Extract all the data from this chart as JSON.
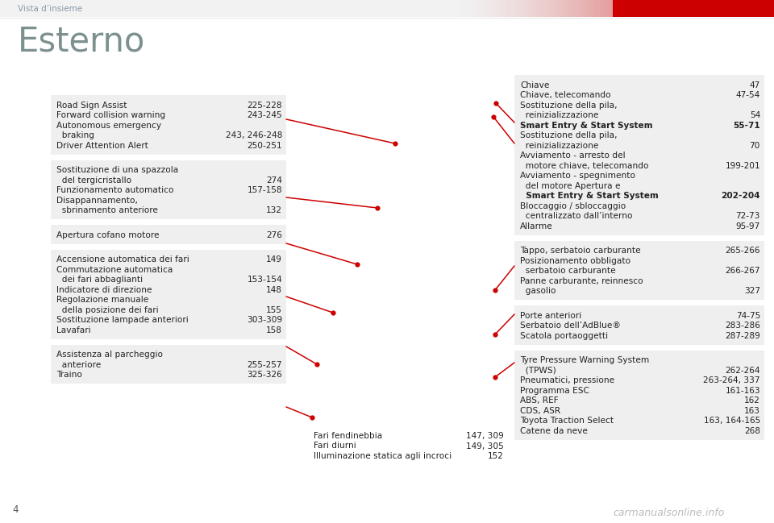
{
  "title": "Esterno",
  "header": "Vista d’insieme",
  "page_num": "4",
  "bg_color": "#ffffff",
  "header_color": "#8899aa",
  "title_color": "#7d9090",
  "box_bg": "#efefef",
  "text_color": "#222222",
  "red_color": "#cc0000",
  "watermark": "carmanualsonline.info",
  "left_boxes": [
    [
      [
        "Road Sign Assist",
        "225-228"
      ],
      [
        "Forward collision warning",
        "243-245"
      ],
      [
        "Autonomous emergency",
        ""
      ],
      [
        "  braking",
        "243, 246-248"
      ],
      [
        "Driver Attention Alert",
        "250-251"
      ]
    ],
    [
      [
        "Sostituzione di una spazzola",
        ""
      ],
      [
        "  del tergicristallo",
        "274"
      ],
      [
        "Funzionamento automatico",
        "157-158"
      ],
      [
        "Disappannamento,",
        ""
      ],
      [
        "  sbrinamento anteriore",
        "132"
      ]
    ],
    [
      [
        "Apertura cofano motore",
        "276"
      ]
    ],
    [
      [
        "Accensione automatica dei fari",
        "149"
      ],
      [
        "Commutazione automatica",
        ""
      ],
      [
        "  dei fari abbaglianti",
        "153-154"
      ],
      [
        "Indicatore di direzione",
        "148"
      ],
      [
        "Regolazione manuale",
        ""
      ],
      [
        "  della posizione dei fari",
        "155"
      ],
      [
        "Sostituzione lampade anteriori",
        "303-309"
      ],
      [
        "Lavafari",
        "158"
      ]
    ],
    [
      [
        "Assistenza al parcheggio",
        ""
      ],
      [
        "  anteriore",
        "255-257"
      ],
      [
        "Traino",
        "325-326"
      ]
    ]
  ],
  "bottom_items": [
    [
      "Fari fendinebbia",
      "147, 309"
    ],
    [
      "Fari diurni",
      "149, 305"
    ],
    [
      "Illuminazione statica agli incroci",
      "152"
    ]
  ],
  "right_boxes": [
    [
      [
        "Chiave",
        "47"
      ],
      [
        "Chiave, telecomando",
        "47-54"
      ],
      [
        "Sostituzione della pila,",
        ""
      ],
      [
        "  reinizializzazione",
        "54"
      ],
      [
        "Smart Entry & Start System",
        "55-71"
      ],
      [
        "Sostituzione della pila,",
        ""
      ],
      [
        "  reinizializzazione",
        "70"
      ],
      [
        "Avviamento - arresto del",
        ""
      ],
      [
        "  motore chiave, telecomando",
        "199-201"
      ],
      [
        "Avviamento - spegnimento",
        ""
      ],
      [
        "  del motore Apertura e",
        ""
      ],
      [
        "  Smart Entry & Start System",
        "202-204"
      ],
      [
        "Bloccaggio / sbloccaggio",
        ""
      ],
      [
        "  centralizzato dall’interno",
        "72-73"
      ],
      [
        "Allarme",
        "95-97"
      ]
    ],
    [
      [
        "Tappo, serbatoio carburante",
        "265-266"
      ],
      [
        "Posizionamento obbligato",
        ""
      ],
      [
        "  serbatoio carburante",
        "266-267"
      ],
      [
        "Panne carburante, reinnesco",
        ""
      ],
      [
        "  gasolio",
        "327"
      ]
    ],
    [
      [
        "Porte anteriori",
        "74-75"
      ],
      [
        "Serbatoio dell’AdBlue®",
        "283-286"
      ],
      [
        "Scatola portaoggetti",
        "287-289"
      ]
    ],
    [
      [
        "Tyre Pressure Warning System",
        ""
      ],
      [
        "  (TPWS)",
        "262-264"
      ],
      [
        "Pneumatici, pressione",
        "263-264, 337"
      ],
      [
        "Programma ESC",
        "161-163"
      ],
      [
        "ABS, REF",
        "162"
      ],
      [
        "CDS, ASR",
        "163"
      ],
      [
        "Toyota Traction Select",
        "163, 164-165"
      ],
      [
        "Catene da neve",
        "268"
      ]
    ]
  ],
  "bold_labels": [
    "Smart Entry & Start System"
  ]
}
